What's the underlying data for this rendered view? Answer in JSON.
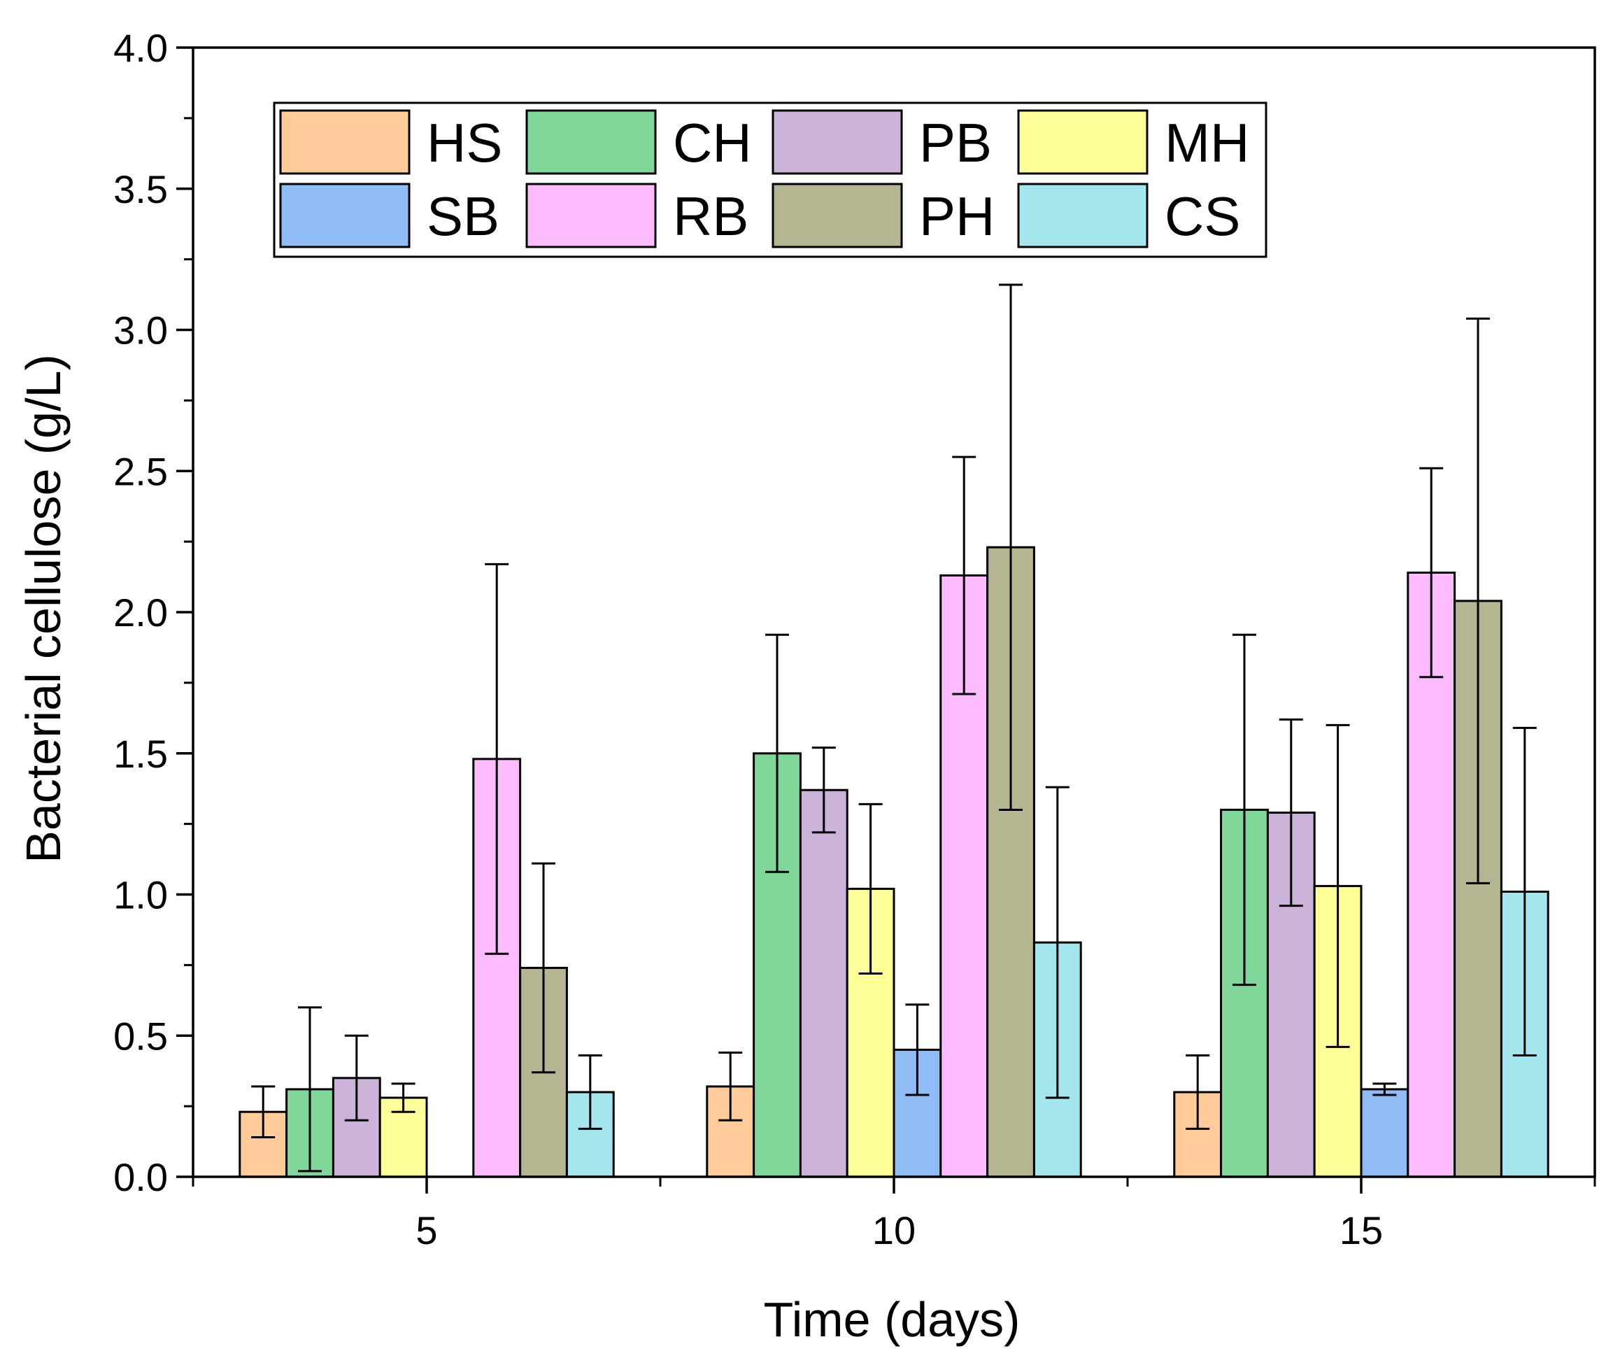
{
  "chart_data": {
    "type": "bar",
    "title": "",
    "xlabel": "Time (days)",
    "ylabel": "Bacterial cellulose (g/L)",
    "categories": [
      "5",
      "10",
      "15"
    ],
    "ylim": [
      0,
      4.0
    ],
    "yticks": [
      "0.0",
      "0.5",
      "1.0",
      "1.5",
      "2.0",
      "2.5",
      "3.0",
      "3.5",
      "4.0"
    ],
    "legend_position": "top-left",
    "series": [
      {
        "name": "HS",
        "color": "#FFCC99",
        "values": [
          0.23,
          0.32,
          0.3
        ],
        "errors": [
          0.09,
          0.12,
          0.13
        ]
      },
      {
        "name": "CH",
        "color": "#7FD89A",
        "values": [
          0.31,
          1.5,
          1.3
        ],
        "errors": [
          0.29,
          0.42,
          0.62
        ]
      },
      {
        "name": "PB",
        "color": "#CBB3D9",
        "values": [
          0.35,
          1.37,
          1.29
        ],
        "errors": [
          0.15,
          0.15,
          0.33
        ]
      },
      {
        "name": "MH",
        "color": "#FFFF99",
        "values": [
          0.28,
          1.02,
          1.03
        ],
        "errors": [
          0.05,
          0.3,
          0.57
        ]
      },
      {
        "name": "SB",
        "color": "#8FBCF5",
        "values": [
          0.0,
          0.45,
          0.31
        ],
        "errors": [
          0.0,
          0.16,
          0.02
        ]
      },
      {
        "name": "RB",
        "color": "#FFBBFF",
        "values": [
          1.48,
          2.13,
          2.14
        ],
        "errors": [
          0.69,
          0.42,
          0.37
        ]
      },
      {
        "name": "PH",
        "color": "#B5B592",
        "values": [
          0.74,
          2.23,
          2.04
        ],
        "errors": [
          0.37,
          0.93,
          1.0
        ]
      },
      {
        "name": "CS",
        "color": "#A3E6EE",
        "values": [
          0.3,
          0.83,
          1.01
        ],
        "errors": [
          0.13,
          0.55,
          0.58
        ]
      }
    ]
  }
}
